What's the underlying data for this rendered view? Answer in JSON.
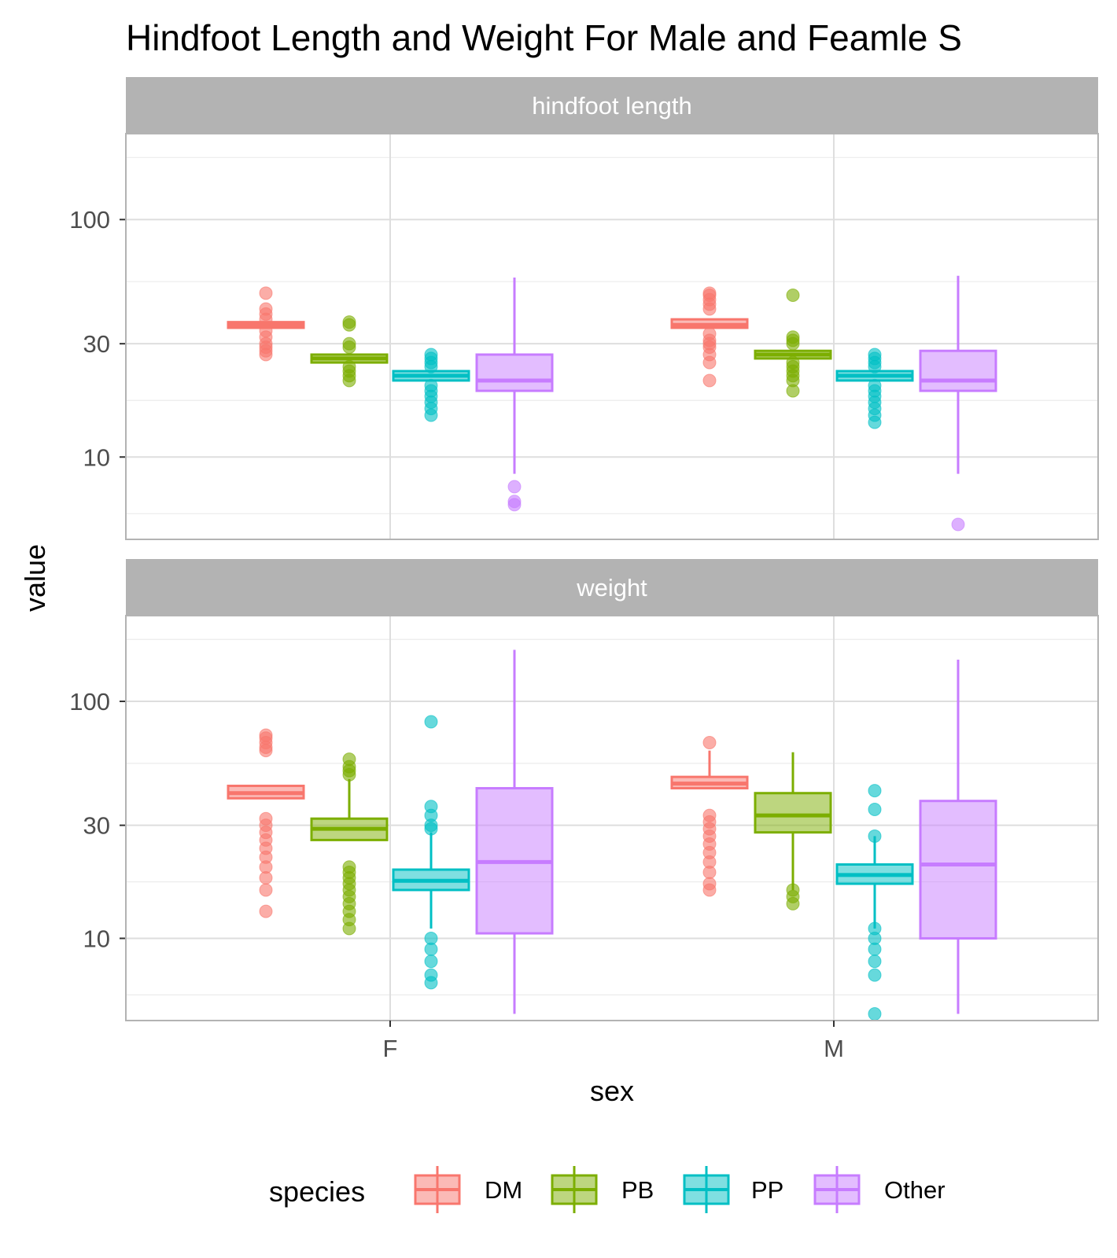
{
  "chart_data": {
    "type": "box",
    "title": "Hindfoot Length and Weight For Male and Feamle S",
    "xlabel": "sex",
    "ylabel": "value",
    "y_scale": "log10",
    "y_ticks": [
      10,
      30,
      100
    ],
    "categories": [
      "F",
      "M"
    ],
    "legend": {
      "title": "species",
      "position": "bottom",
      "entries": [
        "DM",
        "PB",
        "PP",
        "Other"
      ]
    },
    "colors": {
      "DM": "#F8766D",
      "PB": "#7CAE00",
      "PP": "#00BFC4",
      "Other": "#C77CFF"
    },
    "panels": [
      {
        "name": "hindfoot length",
        "ylim": [
          4.5,
          230
        ],
        "boxes": [
          {
            "sex": "F",
            "species": "DM",
            "q1": 35,
            "median": 36,
            "q3": 37,
            "low": 35,
            "high": 37,
            "outliers": [
              49,
              42,
              40,
              38,
              34,
              32,
              30,
              29,
              28,
              27
            ]
          },
          {
            "sex": "F",
            "species": "PB",
            "q1": 25,
            "median": 26,
            "q3": 27,
            "low": 25,
            "high": 27,
            "outliers": [
              37,
              36,
              30,
              29,
              24,
              23,
              22,
              21
            ]
          },
          {
            "sex": "F",
            "species": "PP",
            "q1": 21,
            "median": 22,
            "q3": 23,
            "low": 21,
            "high": 23,
            "outliers": [
              27,
              26,
              25,
              24,
              20,
              19,
              18,
              17,
              16,
              15
            ]
          },
          {
            "sex": "F",
            "species": "Other",
            "q1": 19,
            "median": 21,
            "q3": 27,
            "low": 8.5,
            "high": 57,
            "outliers": [
              7.5,
              6.5,
              6.3
            ]
          },
          {
            "sex": "M",
            "species": "DM",
            "q1": 35,
            "median": 36,
            "q3": 38,
            "low": 35,
            "high": 38,
            "outliers": [
              49,
              48,
              46,
              44,
              42,
              33,
              31,
              30,
              29,
              27,
              25,
              21
            ]
          },
          {
            "sex": "M",
            "species": "PB",
            "q1": 26,
            "median": 27,
            "q3": 28,
            "low": 26,
            "high": 28,
            "outliers": [
              48,
              32,
              31,
              30,
              25,
              24,
              23,
              22,
              21,
              19
            ]
          },
          {
            "sex": "M",
            "species": "PP",
            "q1": 21,
            "median": 22,
            "q3": 23,
            "low": 21,
            "high": 23,
            "outliers": [
              27,
              26,
              25,
              24,
              20,
              19,
              18,
              17,
              16,
              15,
              14
            ]
          },
          {
            "sex": "M",
            "species": "Other",
            "q1": 19,
            "median": 21,
            "q3": 28,
            "low": 8.5,
            "high": 58,
            "outliers": [
              5.2
            ]
          }
        ]
      },
      {
        "name": "weight",
        "ylim": [
          4.5,
          230
        ],
        "boxes": [
          {
            "sex": "F",
            "species": "DM",
            "q1": 39,
            "median": 41,
            "q3": 44,
            "low": 39,
            "high": 44,
            "outliers": [
              72,
              70,
              67,
              64,
              62,
              32,
              30,
              28,
              26,
              24,
              22,
              20,
              18,
              16,
              13
            ]
          },
          {
            "sex": "F",
            "species": "PB",
            "q1": 26,
            "median": 29,
            "q3": 32,
            "low": 26,
            "high": 47,
            "outliers": [
              57,
              53,
              51,
              49,
              20,
              19,
              18,
              17,
              16,
              15,
              14,
              13,
              12,
              11
            ]
          },
          {
            "sex": "F",
            "species": "PP",
            "q1": 16,
            "median": 17.5,
            "q3": 19.5,
            "low": 11,
            "high": 28,
            "outliers": [
              82,
              36,
              33,
              30,
              29,
              10,
              9,
              8,
              7,
              6.5
            ]
          },
          {
            "sex": "F",
            "species": "Other",
            "q1": 10.5,
            "median": 21,
            "q3": 43,
            "low": 4.8,
            "high": 165,
            "outliers": []
          },
          {
            "sex": "M",
            "species": "DM",
            "q1": 43,
            "median": 45,
            "q3": 48,
            "low": 43,
            "high": 62,
            "outliers": [
              67,
              33,
              31,
              29,
              27,
              25,
              23,
              21,
              19,
              17,
              16
            ]
          },
          {
            "sex": "M",
            "species": "PB",
            "q1": 28,
            "median": 33,
            "q3": 41,
            "low": 16,
            "high": 61,
            "outliers": [
              16,
              15,
              14
            ]
          },
          {
            "sex": "M",
            "species": "PP",
            "q1": 17,
            "median": 18.5,
            "q3": 20.5,
            "low": 11,
            "high": 27,
            "outliers": [
              42,
              35,
              27,
              11,
              10,
              9,
              8,
              7,
              4.8
            ]
          },
          {
            "sex": "M",
            "species": "Other",
            "q1": 10,
            "median": 20.5,
            "q3": 38,
            "low": 4.8,
            "high": 150,
            "outliers": []
          }
        ]
      }
    ]
  }
}
